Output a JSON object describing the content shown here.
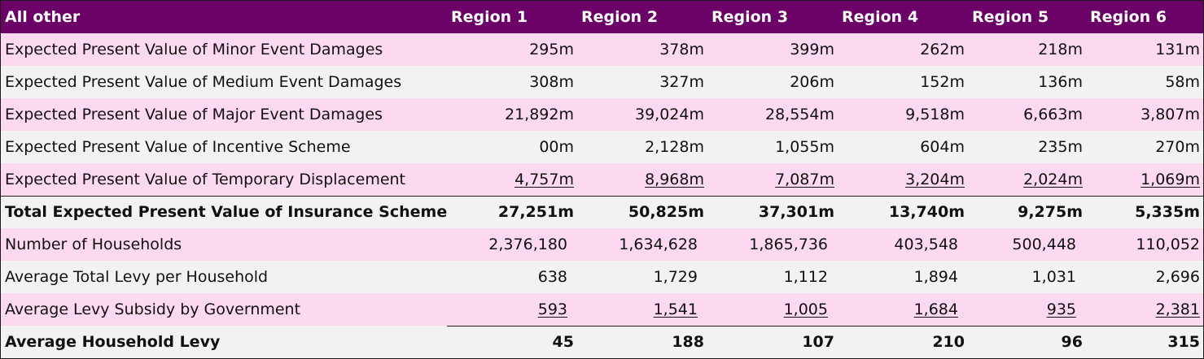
{
  "header": {
    "title": "All other",
    "regions": [
      "Region 1",
      "Region 2",
      "Region 3",
      "Region 4",
      "Region 5",
      "Region 6"
    ]
  },
  "rows": [
    {
      "label": "Expected Present Value of Minor Event Damages",
      "values": [
        "295m",
        "378m",
        "399m",
        "262m",
        "218m",
        "131m"
      ]
    },
    {
      "label": "Expected Present Value of Medium Event Damages",
      "values": [
        "308m",
        "327m",
        "206m",
        "152m",
        "136m",
        "58m"
      ]
    },
    {
      "label": "Expected Present Value of Major Event Damages",
      "values": [
        "21,892m",
        "39,024m",
        "28,554m",
        "9,518m",
        "6,663m",
        "3,807m"
      ]
    },
    {
      "label": "Expected Present Value of Incentive Scheme",
      "values": [
        "00m",
        "2,128m",
        "1,055m",
        "604m",
        "235m",
        "270m"
      ]
    },
    {
      "label": "Expected Present Value of Temporary Displacement",
      "values": [
        "4,757m",
        "8,968m",
        "7,087m",
        "3,204m",
        "2,024m",
        "1,069m"
      ]
    },
    {
      "label": "Total Expected Present Value of Insurance Scheme",
      "values": [
        "27,251m",
        "50,825m",
        "37,301m",
        "13,740m",
        "9,275m",
        "5,335m"
      ]
    },
    {
      "label": "Number of Households",
      "values": [
        "2,376,180",
        "1,634,628",
        "1,865,736",
        "403,548",
        "500,448",
        "110,052"
      ]
    },
    {
      "label": "Average Total Levy per Household",
      "values": [
        "638",
        "1,729",
        "1,112",
        "1,894",
        "1,031",
        "2,696"
      ]
    },
    {
      "label": "Average Levy Subsidy by Government",
      "values": [
        "593",
        "1,541",
        "1,005",
        "1,684",
        "935",
        "2,381"
      ]
    },
    {
      "label": "Average Household Levy",
      "values": [
        "45",
        "188",
        "107",
        "210",
        "96",
        "315"
      ]
    }
  ],
  "colors": {
    "header_bg": "#6b0066",
    "row_pink": "#fdd9f1",
    "row_grey": "#f2f2f2"
  }
}
